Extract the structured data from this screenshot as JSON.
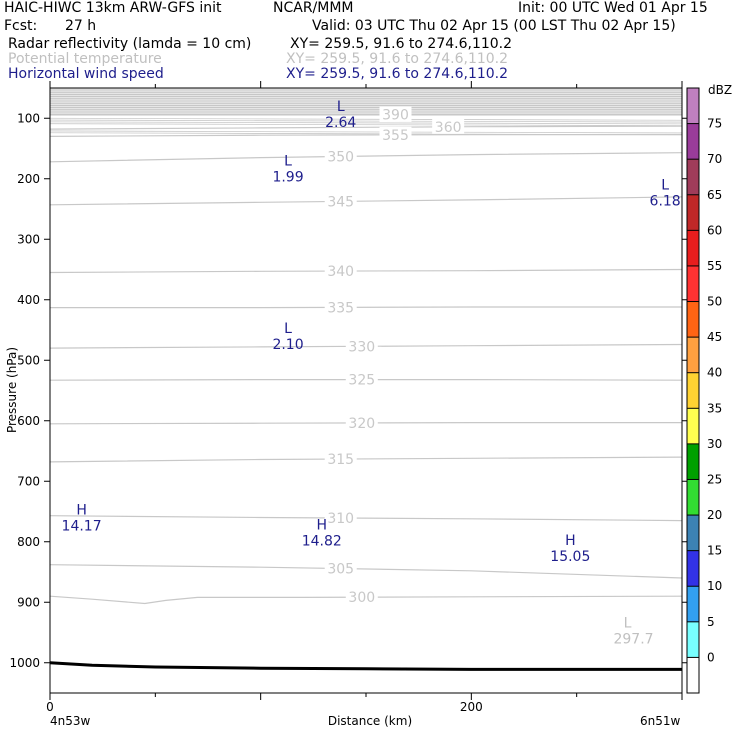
{
  "header": {
    "model": "HAIC-HIWC 13km ARW-GFS init",
    "org": "NCAR/MMM",
    "init": "Init: 00 UTC Wed 01 Apr 15",
    "fcst_label": "Fcst:",
    "fcst_value": "27 h",
    "valid": "Valid: 03 UTC Thu 02 Apr 15 (00 LST Thu 02 Apr 15)",
    "fields": [
      {
        "name": "Radar reflectivity (lamda = 10 cm)",
        "xy": "XY= 259.5, 91.6 to 274.6,110.2",
        "color": "#000000"
      },
      {
        "name": "Potential temperature",
        "xy": "XY= 259.5, 91.6 to 274.6,110.2",
        "color": "#c0c0c0"
      },
      {
        "name": "Horizontal wind speed",
        "xy": "XY= 259.5, 91.6 to 274.6,110.2",
        "color": "#1e1e8c"
      }
    ]
  },
  "axes": {
    "ylabel": "Pressure (hPa)",
    "xlabel": "Distance (km)",
    "x_left_label": "4n53w",
    "x_right_label": "6n51w"
  },
  "colorbar": {
    "unit": "dBZ",
    "levels": [
      "75",
      "70",
      "65",
      "60",
      "55",
      "50",
      "45",
      "40",
      "35",
      "30",
      "25",
      "20",
      "15",
      "10",
      "5",
      "0"
    ],
    "colors": [
      "#c080c0",
      "#9a3c9a",
      "#a03c5a",
      "#c02828",
      "#e81e1e",
      "#ff3232",
      "#ff6414",
      "#ffa040",
      "#ffd232",
      "#ffff50",
      "#00a000",
      "#32dc32",
      "#3c82b4",
      "#3232e6",
      "#32a0f0",
      "#78ffff",
      "#ffffff"
    ]
  },
  "chart_data": {
    "type": "cross-section",
    "title": "",
    "xlabel": "Distance (km)",
    "ylabel": "Pressure (hPa)",
    "xlim": [
      0,
      300
    ],
    "ylim": [
      1050,
      50
    ],
    "x_ticks": [
      0,
      200
    ],
    "y_ticks": [
      100,
      200,
      300,
      400,
      500,
      600,
      700,
      800,
      900,
      1000
    ],
    "surface": {
      "x": [
        0,
        20,
        50,
        100,
        150,
        200,
        250,
        300
      ],
      "p": [
        1000,
        1004,
        1007,
        1009,
        1010,
        1011,
        1011,
        1011
      ]
    },
    "theta_contours": [
      {
        "value": 300,
        "label": "300",
        "label_x": 148,
        "x": [
          0,
          20,
          45,
          55,
          70,
          120,
          200,
          300
        ],
        "p": [
          890,
          895,
          902,
          897,
          892,
          892,
          891,
          890
        ]
      },
      {
        "value": 305,
        "label": "305",
        "label_x": 138,
        "x": [
          0,
          100,
          200,
          300
        ],
        "p": [
          838,
          842,
          848,
          860
        ]
      },
      {
        "value": 310,
        "label": "310",
        "label_x": 138,
        "x": [
          0,
          100,
          200,
          300
        ],
        "p": [
          757,
          760,
          762,
          765
        ]
      },
      {
        "value": 315,
        "label": "315",
        "label_x": 138,
        "x": [
          0,
          100,
          200,
          300
        ],
        "p": [
          668,
          664,
          662,
          660
        ]
      },
      {
        "value": 320,
        "label": "320",
        "label_x": 148,
        "x": [
          0,
          100,
          200,
          300
        ],
        "p": [
          605,
          604,
          603,
          603
        ]
      },
      {
        "value": 325,
        "label": "325",
        "label_x": 148,
        "x": [
          0,
          100,
          200,
          300
        ],
        "p": [
          533,
          532,
          532,
          533
        ]
      },
      {
        "value": 330,
        "label": "330",
        "label_x": 148,
        "x": [
          0,
          100,
          200,
          300
        ],
        "p": [
          480,
          478,
          476,
          474
        ]
      },
      {
        "value": 335,
        "label": "335",
        "label_x": 138,
        "x": [
          0,
          100,
          200,
          300
        ],
        "p": [
          413,
          413,
          412,
          412
        ]
      },
      {
        "value": 340,
        "label": "340",
        "label_x": 138,
        "x": [
          0,
          100,
          200,
          300
        ],
        "p": [
          355,
          353,
          352,
          350
        ]
      },
      {
        "value": 345,
        "label": "345",
        "label_x": 138,
        "x": [
          0,
          100,
          200,
          300
        ],
        "p": [
          243,
          239,
          235,
          230
        ]
      },
      {
        "value": 350,
        "label": "350",
        "label_x": 138,
        "x": [
          0,
          100,
          200,
          300
        ],
        "p": [
          172,
          165,
          160,
          157
        ]
      },
      {
        "value": 355,
        "label": "355",
        "label_x": 164,
        "x": [
          0,
          100,
          200,
          300
        ],
        "p": [
          130,
          128,
          127,
          127
        ]
      },
      {
        "value": 360,
        "label": "360",
        "label_x": 189,
        "x": [
          0,
          100,
          200,
          300
        ],
        "p": [
          118,
          116,
          114,
          113
        ]
      },
      {
        "value": 390,
        "label": "390",
        "label_x": 164,
        "x": [
          0,
          100,
          200,
          300
        ],
        "p": [
          94,
          94,
          94,
          94
        ]
      }
    ],
    "theta_extrema": [
      {
        "type": "L",
        "value": "297.7",
        "x": 277,
        "p": 952
      }
    ],
    "wind_extrema": [
      {
        "type": "L",
        "value": "2.64",
        "x": 138,
        "p": 98
      },
      {
        "type": "L",
        "value": "1.99",
        "x": 113,
        "p": 188
      },
      {
        "type": "L",
        "value": "6.18",
        "x": 292,
        "p": 228
      },
      {
        "type": "L",
        "value": "2.10",
        "x": 113,
        "p": 465
      },
      {
        "type": "H",
        "value": "14.17",
        "x": 15,
        "p": 765
      },
      {
        "type": "H",
        "value": "14.82",
        "x": 129,
        "p": 790
      },
      {
        "type": "H",
        "value": "15.05",
        "x": 247,
        "p": 815
      }
    ]
  }
}
